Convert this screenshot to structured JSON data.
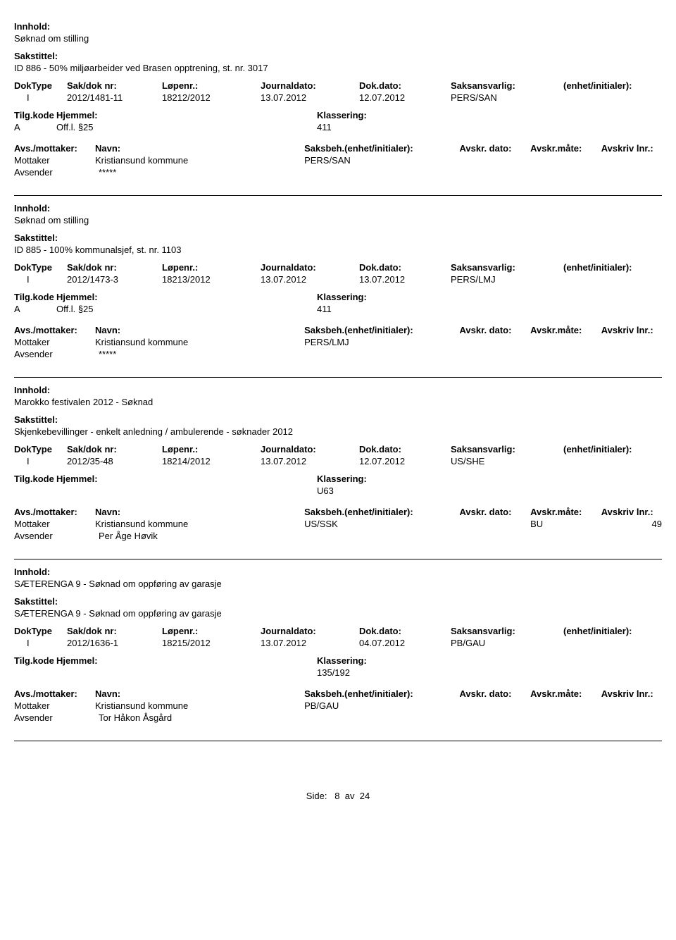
{
  "labels": {
    "innhold": "Innhold:",
    "sakstittel": "Sakstittel:",
    "doktype": "DokType",
    "sakdoknr": "Sak/dok nr:",
    "lopenr": "Løpenr.:",
    "journaldato": "Journaldato:",
    "dokdato": "Dok.dato:",
    "saksansvarlig": "Saksansvarlig:",
    "enhet": "(enhet/initialer):",
    "tilgkode": "Tilg.kode",
    "hjemmel": "Hjemmel:",
    "klassering": "Klassering:",
    "avsmottaker": "Avs./mottaker:",
    "navn": "Navn:",
    "saksbeh": "Saksbeh.(enhet/initialer):",
    "avskrdato": "Avskr. dato:",
    "avskrmote": "Avskr.måte:",
    "avskrivlnr": "Avskriv lnr.:",
    "mottaker": "Mottaker",
    "avsender": "Avsender"
  },
  "records": [
    {
      "innhold": "Søknad om stilling",
      "sakstittel": "ID 886 - 50% miljøarbeider ved Brasen opptrening, st. nr. 3017",
      "doktype": "I",
      "sakdoknr": "2012/1481-11",
      "lopenr": "18212/2012",
      "journaldato": "13.07.2012",
      "dokdato": "12.07.2012",
      "saksansvarlig": "PERS/SAN",
      "tilgkode": "A",
      "hjemmel": "Off.l. §25",
      "klassering": "411",
      "mottaker_name": "Kristiansund kommune",
      "mottaker_beh": "PERS/SAN",
      "avsender_name": "*****",
      "avskrmote": "",
      "avskrivlnr": ""
    },
    {
      "innhold": "Søknad om stilling",
      "sakstittel": "ID 885 - 100% kommunalsjef, st. nr. 1103",
      "doktype": "I",
      "sakdoknr": "2012/1473-3",
      "lopenr": "18213/2012",
      "journaldato": "13.07.2012",
      "dokdato": "13.07.2012",
      "saksansvarlig": "PERS/LMJ",
      "tilgkode": "A",
      "hjemmel": "Off.l. §25",
      "klassering": "411",
      "mottaker_name": "Kristiansund kommune",
      "mottaker_beh": "PERS/LMJ",
      "avsender_name": "*****",
      "avskrmote": "",
      "avskrivlnr": ""
    },
    {
      "innhold": "Marokko festivalen 2012 - Søknad",
      "sakstittel": "Skjenkebevillinger - enkelt anledning / ambulerende - søknader 2012",
      "doktype": "I",
      "sakdoknr": "2012/35-48",
      "lopenr": "18214/2012",
      "journaldato": "13.07.2012",
      "dokdato": "12.07.2012",
      "saksansvarlig": "US/SHE",
      "tilgkode": "",
      "hjemmel": "",
      "klassering": "U63",
      "mottaker_name": "Kristiansund kommune",
      "mottaker_beh": "US/SSK",
      "avsender_name": "Per Åge Høvik",
      "avskrmote": "BU",
      "avskrivlnr": "49"
    },
    {
      "innhold": "SÆTERENGA 9 - Søknad om oppføring av garasje",
      "sakstittel": "SÆTERENGA 9 - Søknad om oppføring av garasje",
      "doktype": "I",
      "sakdoknr": "2012/1636-1",
      "lopenr": "18215/2012",
      "journaldato": "13.07.2012",
      "dokdato": "04.07.2012",
      "saksansvarlig": "PB/GAU",
      "tilgkode": "",
      "hjemmel": "",
      "klassering": "135/192",
      "mottaker_name": "Kristiansund kommune",
      "mottaker_beh": "PB/GAU",
      "avsender_name": "Tor Håkon Åsgård",
      "avskrmote": "",
      "avskrivlnr": ""
    }
  ],
  "footer": {
    "side": "Side:",
    "page": "8",
    "av": "av",
    "total": "24"
  }
}
